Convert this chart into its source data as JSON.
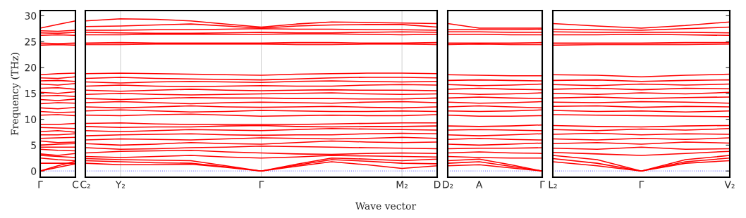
{
  "chart_data": [
    {
      "type": "line",
      "ylabel": "Frequency (THz)",
      "categories": [
        "Γ",
        null,
        "C"
      ],
      "ylim": [
        -1.2,
        31
      ],
      "yticks": [
        0,
        5,
        10,
        15,
        20,
        25,
        30
      ],
      "line_style": "solid",
      "ref_lines": [
        {
          "axis": "y",
          "value": 0,
          "color": "#8080ff",
          "line_style": "dotted"
        }
      ],
      "series": [
        {
          "color": "#ff0000",
          "values": [
            0,
            0.7,
            1.4
          ]
        },
        {
          "color": "#ff0000",
          "values": [
            0,
            1.0,
            1.9
          ]
        },
        {
          "color": "#ff0000",
          "values": [
            1.5,
            1.5,
            1.5
          ]
        },
        {
          "color": "#ff0000",
          "values": [
            2.5,
            2.2,
            2.0
          ]
        },
        {
          "color": "#ff0000",
          "values": [
            3.0,
            2.8,
            2.6
          ]
        },
        {
          "color": "#ff0000",
          "values": [
            3.3,
            3.0,
            3.4
          ]
        },
        {
          "color": "#ff0000",
          "values": [
            4.2,
            4.0,
            3.9
          ]
        },
        {
          "color": "#ff0000",
          "values": [
            4.6,
            4.6,
            4.6
          ]
        },
        {
          "color": "#ff0000",
          "values": [
            5.0,
            5.2,
            5.3
          ]
        },
        {
          "color": "#ff0000",
          "values": [
            5.8,
            5.5,
            5.6
          ]
        },
        {
          "color": "#ff0000",
          "values": [
            6.3,
            6.4,
            6.5
          ]
        },
        {
          "color": "#ff0000",
          "values": [
            7.0,
            7.0,
            7.2
          ]
        },
        {
          "color": "#ff0000",
          "values": [
            7.6,
            7.8,
            7.5
          ]
        },
        {
          "color": "#ff0000",
          "values": [
            8.4,
            8.3,
            8.2
          ]
        },
        {
          "color": "#ff0000",
          "values": [
            9.0,
            9.0,
            9.2
          ]
        },
        {
          "color": "#ff0000",
          "values": [
            10.8,
            10.9,
            10.7
          ]
        },
        {
          "color": "#ff0000",
          "values": [
            11.5,
            11.3,
            11.4
          ]
        },
        {
          "color": "#ff0000",
          "values": [
            12.2,
            12.0,
            12.3
          ]
        },
        {
          "color": "#ff0000",
          "values": [
            13.0,
            13.2,
            13.1
          ]
        },
        {
          "color": "#ff0000",
          "values": [
            13.8,
            13.6,
            13.9
          ]
        },
        {
          "color": "#ff0000",
          "values": [
            14.5,
            14.6,
            14.4
          ]
        },
        {
          "color": "#ff0000",
          "values": [
            15.2,
            15.0,
            15.3
          ]
        },
        {
          "color": "#ff0000",
          "values": [
            16.0,
            16.1,
            15.8
          ]
        },
        {
          "color": "#ff0000",
          "values": [
            16.8,
            16.6,
            16.9
          ]
        },
        {
          "color": "#ff0000",
          "values": [
            17.4,
            17.5,
            17.3
          ]
        },
        {
          "color": "#ff0000",
          "values": [
            18.0,
            17.9,
            18.2
          ]
        },
        {
          "color": "#ff0000",
          "values": [
            18.6,
            18.8,
            18.9
          ]
        },
        {
          "color": "#ff0000",
          "values": [
            24.3,
            24.4,
            24.3
          ]
        },
        {
          "color": "#ff0000",
          "values": [
            24.7,
            24.6,
            24.7
          ]
        },
        {
          "color": "#ff0000",
          "values": [
            26.2,
            26.3,
            26.2
          ]
        },
        {
          "color": "#ff0000",
          "values": [
            26.7,
            26.6,
            26.8
          ]
        },
        {
          "color": "#ff0000",
          "values": [
            27.1,
            27.0,
            27.2
          ]
        },
        {
          "color": "#ff0000",
          "values": [
            27.6,
            28.3,
            29.0
          ]
        }
      ]
    },
    {
      "type": "line",
      "xlabel": "Wave vector",
      "categories": [
        "C₂",
        "Y₂",
        null,
        null,
        null,
        "Γ",
        null,
        null,
        null,
        "M₂",
        "D"
      ],
      "ylim": [
        -1.2,
        31
      ],
      "tick_labels": "x",
      "grid": "x",
      "line_style": "solid",
      "ref_lines": [
        {
          "axis": "y",
          "value": 0,
          "color": "#8080ff",
          "line_style": "dotted"
        }
      ],
      "series": [
        {
          "color": "#ff0000",
          "values": [
            1.5,
            1.2,
            1.2,
            1.3,
            0.7,
            0,
            0.9,
            1.8,
            1.2,
            0.5,
            1.0
          ]
        },
        {
          "color": "#ff0000",
          "values": [
            2.0,
            1.8,
            1.6,
            1.5,
            0.8,
            0,
            1.1,
            2.2,
            1.9,
            1.5,
            1.4
          ]
        },
        {
          "color": "#ff0000",
          "values": [
            2.4,
            2.2,
            2.1,
            2.0,
            1.0,
            0,
            1.3,
            2.5,
            2.3,
            2.0,
            2.3
          ]
        },
        {
          "color": "#ff0000",
          "values": [
            2.8,
            2.6,
            2.8,
            3.0,
            2.7,
            2.5,
            2.7,
            3.0,
            2.9,
            2.8,
            2.7
          ]
        },
        {
          "color": "#ff0000",
          "values": [
            3.5,
            3.8,
            3.9,
            4.0,
            3.7,
            3.5,
            3.3,
            3.2,
            3.4,
            3.5,
            3.4
          ]
        },
        {
          "color": "#ff0000",
          "values": [
            4.5,
            4.2,
            4.3,
            4.5,
            4.6,
            4.8,
            4.7,
            4.6,
            4.5,
            4.4,
            4.3
          ]
        },
        {
          "color": "#ff0000",
          "values": [
            5.3,
            5.0,
            5.2,
            5.5,
            5.3,
            5.2,
            5.5,
            5.8,
            5.6,
            5.5,
            5.6
          ]
        },
        {
          "color": "#ff0000",
          "values": [
            6.0,
            6.2,
            6.1,
            6.0,
            6.2,
            6.4,
            6.3,
            6.2,
            6.3,
            6.5,
            6.3
          ]
        },
        {
          "color": "#ff0000",
          "values": [
            6.8,
            7.0,
            7.1,
            7.2,
            7.0,
            6.9,
            7.0,
            7.0,
            7.2,
            7.3,
            7.2
          ]
        },
        {
          "color": "#ff0000",
          "values": [
            7.8,
            7.6,
            7.8,
            8.0,
            7.9,
            7.8,
            8.0,
            8.2,
            8.1,
            8.0,
            7.9
          ]
        },
        {
          "color": "#ff0000",
          "values": [
            8.6,
            8.4,
            8.5,
            8.5,
            8.7,
            8.8,
            8.6,
            8.5,
            8.6,
            8.6,
            8.7
          ]
        },
        {
          "color": "#ff0000",
          "values": [
            9.2,
            9.3,
            9.1,
            9.0,
            9.0,
            9.0,
            9.0,
            9.1,
            9.2,
            9.3,
            9.3
          ]
        },
        {
          "color": "#ff0000",
          "values": [
            10.8,
            10.7,
            10.9,
            11.0,
            10.8,
            10.6,
            10.7,
            10.8,
            10.7,
            10.7,
            10.9
          ]
        },
        {
          "color": "#ff0000",
          "values": [
            11.6,
            11.8,
            11.6,
            11.4,
            11.5,
            11.7,
            11.6,
            11.5,
            11.5,
            11.6,
            11.5
          ]
        },
        {
          "color": "#ff0000",
          "values": [
            12.4,
            12.2,
            12.4,
            12.6,
            12.4,
            12.3,
            12.4,
            12.5,
            12.3,
            12.2,
            12.4
          ]
        },
        {
          "color": "#ff0000",
          "values": [
            13.2,
            13.4,
            13.2,
            13.0,
            13.2,
            13.3,
            13.2,
            13.1,
            13.3,
            13.4,
            13.2
          ]
        },
        {
          "color": "#ff0000",
          "values": [
            14.0,
            13.8,
            14.0,
            14.2,
            14.1,
            14.1,
            14.0,
            14.0,
            13.9,
            13.9,
            14.1
          ]
        },
        {
          "color": "#ff0000",
          "values": [
            14.8,
            15.0,
            14.8,
            14.7,
            14.8,
            14.9,
            15.0,
            15.1,
            14.9,
            14.8,
            14.9
          ]
        },
        {
          "color": "#ff0000",
          "values": [
            15.6,
            15.4,
            15.6,
            15.8,
            15.6,
            15.5,
            15.6,
            15.7,
            15.6,
            15.6,
            15.5
          ]
        },
        {
          "color": "#ff0000",
          "values": [
            16.4,
            16.6,
            16.4,
            16.3,
            16.4,
            16.5,
            16.4,
            16.4,
            16.6,
            16.7,
            16.6
          ]
        },
        {
          "color": "#ff0000",
          "values": [
            17.2,
            17.0,
            17.2,
            17.3,
            17.2,
            17.1,
            17.3,
            17.4,
            17.3,
            17.2,
            17.3
          ]
        },
        {
          "color": "#ff0000",
          "values": [
            17.9,
            18.1,
            17.9,
            17.8,
            17.7,
            17.6,
            17.8,
            18.0,
            18.1,
            18.1,
            18.0
          ]
        },
        {
          "color": "#ff0000",
          "values": [
            18.8,
            18.9,
            18.8,
            18.7,
            18.6,
            18.5,
            18.7,
            18.8,
            18.9,
            18.9,
            18.8
          ]
        },
        {
          "color": "#ff0000",
          "values": [
            24.4,
            24.4,
            24.5,
            24.5,
            24.5,
            24.5,
            24.4,
            24.4,
            24.5,
            24.5,
            24.4
          ]
        },
        {
          "color": "#ff0000",
          "values": [
            24.7,
            24.8,
            24.7,
            24.7,
            24.7,
            24.7,
            24.8,
            24.8,
            24.7,
            24.7,
            24.8
          ]
        },
        {
          "color": "#ff0000",
          "values": [
            26.3,
            26.3,
            26.4,
            26.4,
            26.4,
            26.4,
            26.5,
            26.5,
            26.4,
            26.3,
            26.4
          ]
        },
        {
          "color": "#ff0000",
          "values": [
            26.8,
            26.7,
            26.6,
            26.6,
            26.7,
            26.8,
            26.7,
            26.7,
            26.8,
            26.9,
            26.8
          ]
        },
        {
          "color": "#ff0000",
          "values": [
            27.2,
            27.2,
            27.3,
            27.3,
            27.4,
            27.5,
            27.4,
            27.4,
            27.3,
            27.3,
            27.2
          ]
        },
        {
          "color": "#ff0000",
          "values": [
            27.9,
            28.0,
            28.2,
            28.4,
            28.0,
            27.6,
            28.0,
            28.2,
            28.3,
            28.3,
            27.8
          ]
        },
        {
          "color": "#ff0000",
          "values": [
            29.0,
            29.4,
            29.3,
            29.0,
            28.4,
            27.8,
            28.4,
            28.8,
            28.7,
            28.6,
            28.5
          ]
        }
      ]
    },
    {
      "type": "line",
      "categories": [
        "D₂",
        "A",
        null,
        "Γ"
      ],
      "ylim": [
        -1.2,
        31
      ],
      "tick_labels": "x",
      "line_style": "solid",
      "ref_lines": [
        {
          "axis": "y",
          "value": 0,
          "color": "#8080ff",
          "line_style": "dotted"
        }
      ],
      "series": [
        {
          "color": "#ff0000",
          "values": [
            1.0,
            1.2,
            0.6,
            0
          ]
        },
        {
          "color": "#ff0000",
          "values": [
            1.5,
            1.8,
            0.9,
            0
          ]
        },
        {
          "color": "#ff0000",
          "values": [
            2.0,
            2.3,
            1.2,
            0
          ]
        },
        {
          "color": "#ff0000",
          "values": [
            2.8,
            2.6,
            2.5,
            2.5
          ]
        },
        {
          "color": "#ff0000",
          "values": [
            3.5,
            3.7,
            3.5,
            3.4
          ]
        },
        {
          "color": "#ff0000",
          "values": [
            4.3,
            4.4,
            4.4,
            4.5
          ]
        },
        {
          "color": "#ff0000",
          "values": [
            5.2,
            5.0,
            5.2,
            5.4
          ]
        },
        {
          "color": "#ff0000",
          "values": [
            6.1,
            6.3,
            6.1,
            6.0
          ]
        },
        {
          "color": "#ff0000",
          "values": [
            7.0,
            6.8,
            7.0,
            7.2
          ]
        },
        {
          "color": "#ff0000",
          "values": [
            7.9,
            8.0,
            7.9,
            7.8
          ]
        },
        {
          "color": "#ff0000",
          "values": [
            8.7,
            8.6,
            8.7,
            8.9
          ]
        },
        {
          "color": "#ff0000",
          "values": [
            10.8,
            10.6,
            10.6,
            10.7
          ]
        },
        {
          "color": "#ff0000",
          "values": [
            11.6,
            11.5,
            11.6,
            11.8
          ]
        },
        {
          "color": "#ff0000",
          "values": [
            12.4,
            12.6,
            12.4,
            12.2
          ]
        },
        {
          "color": "#ff0000",
          "values": [
            13.3,
            13.1,
            13.2,
            13.4
          ]
        },
        {
          "color": "#ff0000",
          "values": [
            14.1,
            14.3,
            14.1,
            14.0
          ]
        },
        {
          "color": "#ff0000",
          "values": [
            15.0,
            14.8,
            14.9,
            15.1
          ]
        },
        {
          "color": "#ff0000",
          "values": [
            15.8,
            16.0,
            15.8,
            15.7
          ]
        },
        {
          "color": "#ff0000",
          "values": [
            16.7,
            16.5,
            16.6,
            16.8
          ]
        },
        {
          "color": "#ff0000",
          "values": [
            17.5,
            17.6,
            17.5,
            17.4
          ]
        },
        {
          "color": "#ff0000",
          "values": [
            18.6,
            18.5,
            18.4,
            18.4
          ]
        },
        {
          "color": "#ff0000",
          "values": [
            24.4,
            24.5,
            24.4,
            24.4
          ]
        },
        {
          "color": "#ff0000",
          "values": [
            24.7,
            24.7,
            24.7,
            24.8
          ]
        },
        {
          "color": "#ff0000",
          "values": [
            26.4,
            26.4,
            26.3,
            26.3
          ]
        },
        {
          "color": "#ff0000",
          "values": [
            26.9,
            26.9,
            26.8,
            26.8
          ]
        },
        {
          "color": "#ff0000",
          "values": [
            27.3,
            27.3,
            27.3,
            27.4
          ]
        },
        {
          "color": "#ff0000",
          "values": [
            28.5,
            27.6,
            27.6,
            27.6
          ]
        }
      ]
    },
    {
      "type": "line",
      "categories": [
        "L₂",
        null,
        "Γ",
        null,
        "V₂"
      ],
      "ylim": [
        -1.2,
        31
      ],
      "tick_labels": "x",
      "line_style": "solid",
      "ref_lines": [
        {
          "axis": "y",
          "value": 0,
          "color": "#8080ff",
          "line_style": "dotted"
        }
      ],
      "series": [
        {
          "color": "#ff0000",
          "values": [
            1.8,
            1.0,
            0,
            1.5,
            2.0
          ]
        },
        {
          "color": "#ff0000",
          "values": [
            2.4,
            1.5,
            0,
            1.8,
            2.5
          ]
        },
        {
          "color": "#ff0000",
          "values": [
            3.0,
            2.2,
            0,
            2.2,
            3.0
          ]
        },
        {
          "color": "#ff0000",
          "values": [
            3.6,
            3.3,
            3.0,
            3.4,
            3.8
          ]
        },
        {
          "color": "#ff0000",
          "values": [
            4.4,
            4.2,
            4.6,
            4.2,
            4.3
          ]
        },
        {
          "color": "#ff0000",
          "values": [
            5.3,
            5.5,
            5.2,
            5.6,
            5.4
          ]
        },
        {
          "color": "#ff0000",
          "values": [
            6.2,
            6.0,
            6.3,
            6.1,
            6.4
          ]
        },
        {
          "color": "#ff0000",
          "values": [
            7.1,
            7.3,
            7.0,
            7.2,
            7.1
          ]
        },
        {
          "color": "#ff0000",
          "values": [
            8.0,
            7.8,
            8.1,
            7.9,
            8.2
          ]
        },
        {
          "color": "#ff0000",
          "values": [
            8.8,
            8.6,
            8.5,
            8.7,
            8.8
          ]
        },
        {
          "color": "#ff0000",
          "values": [
            10.9,
            10.8,
            10.7,
            10.6,
            10.5
          ]
        },
        {
          "color": "#ff0000",
          "values": [
            11.7,
            11.5,
            11.6,
            11.4,
            11.6
          ]
        },
        {
          "color": "#ff0000",
          "values": [
            12.5,
            12.6,
            12.3,
            12.5,
            12.4
          ]
        },
        {
          "color": "#ff0000",
          "values": [
            13.3,
            13.2,
            13.4,
            13.3,
            13.1
          ]
        },
        {
          "color": "#ff0000",
          "values": [
            14.1,
            14.3,
            14.0,
            14.2,
            14.3
          ]
        },
        {
          "color": "#ff0000",
          "values": [
            15.0,
            14.8,
            15.1,
            14.9,
            15.2
          ]
        },
        {
          "color": "#ff0000",
          "values": [
            15.8,
            16.0,
            15.7,
            16.0,
            15.9
          ]
        },
        {
          "color": "#ff0000",
          "values": [
            16.7,
            16.5,
            16.8,
            16.6,
            16.8
          ]
        },
        {
          "color": "#ff0000",
          "values": [
            17.5,
            17.6,
            17.3,
            17.5,
            17.6
          ]
        },
        {
          "color": "#ff0000",
          "values": [
            18.6,
            18.5,
            18.2,
            18.5,
            18.7
          ]
        },
        {
          "color": "#ff0000",
          "values": [
            24.3,
            24.4,
            24.4,
            24.4,
            24.5
          ]
        },
        {
          "color": "#ff0000",
          "values": [
            24.7,
            24.7,
            24.7,
            24.8,
            24.8
          ]
        },
        {
          "color": "#ff0000",
          "values": [
            26.3,
            26.3,
            26.4,
            26.3,
            26.2
          ]
        },
        {
          "color": "#ff0000",
          "values": [
            26.9,
            26.8,
            26.8,
            26.8,
            26.7
          ]
        },
        {
          "color": "#ff0000",
          "values": [
            27.4,
            27.3,
            27.2,
            27.5,
            27.8
          ]
        },
        {
          "color": "#ff0000",
          "values": [
            28.5,
            28.0,
            27.6,
            28.1,
            28.8
          ]
        }
      ]
    }
  ]
}
